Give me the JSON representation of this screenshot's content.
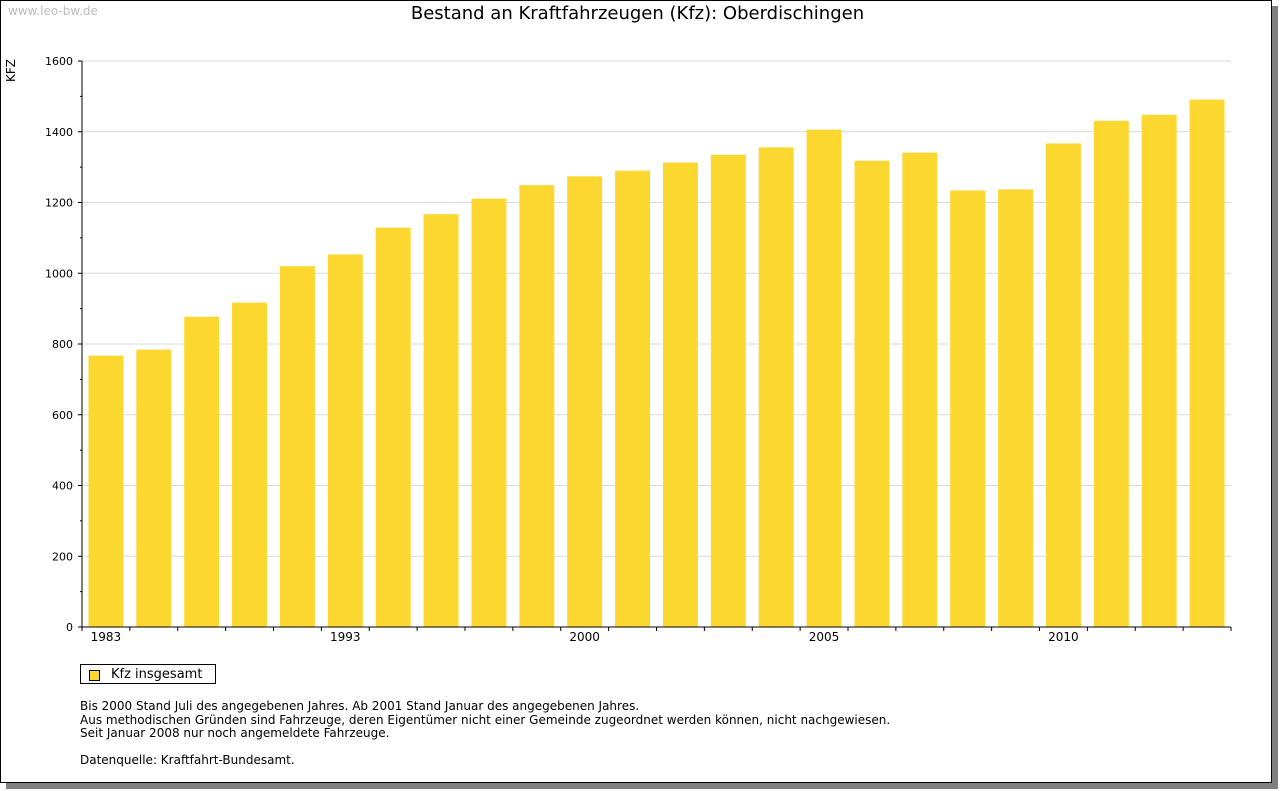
{
  "watermark": "www.leo-bw.de",
  "footnotes": [
    "Bis 2000 Stand Juli des angegebenen Jahres. Ab 2001 Stand Januar des angegebenen Jahres.",
    "Aus methodischen Gründen sind Fahrzeuge, deren Eigentümer nicht einer Gemeinde zugeordnet werden können, nicht nachgewiesen.",
    "Seit Januar 2008 nur noch angemeldete Fahrzeuge."
  ],
  "source": "Datenquelle: Kraftfahrt-Bundesamt.",
  "colors": {
    "bar": "#fcd730",
    "grid": "#d9d9d9",
    "frame_shadow": "#808080"
  },
  "chart_data": {
    "type": "bar",
    "title": "Bestand an Kraftfahrzeugen (Kfz): Oberdischingen",
    "xlabel": "",
    "ylabel": "KFZ",
    "ylim": [
      0,
      1600
    ],
    "yticks": [
      0,
      200,
      400,
      600,
      800,
      1000,
      1200,
      1400,
      1600
    ],
    "grid": true,
    "legend_position": "bottom-left",
    "x_tick_labels": [
      "1983",
      "1993",
      "2000",
      "2005",
      "2010"
    ],
    "x_tick_label_bar_index": [
      0,
      5,
      10,
      15,
      20
    ],
    "series": [
      {
        "name": "Kfz insgesamt",
        "values": [
          767,
          784,
          877,
          917,
          1020,
          1053,
          1129,
          1167,
          1211,
          1249,
          1274,
          1290,
          1313,
          1335,
          1356,
          1406,
          1318,
          1341,
          1234,
          1237,
          1367,
          1431,
          1448,
          1491
        ]
      }
    ]
  }
}
